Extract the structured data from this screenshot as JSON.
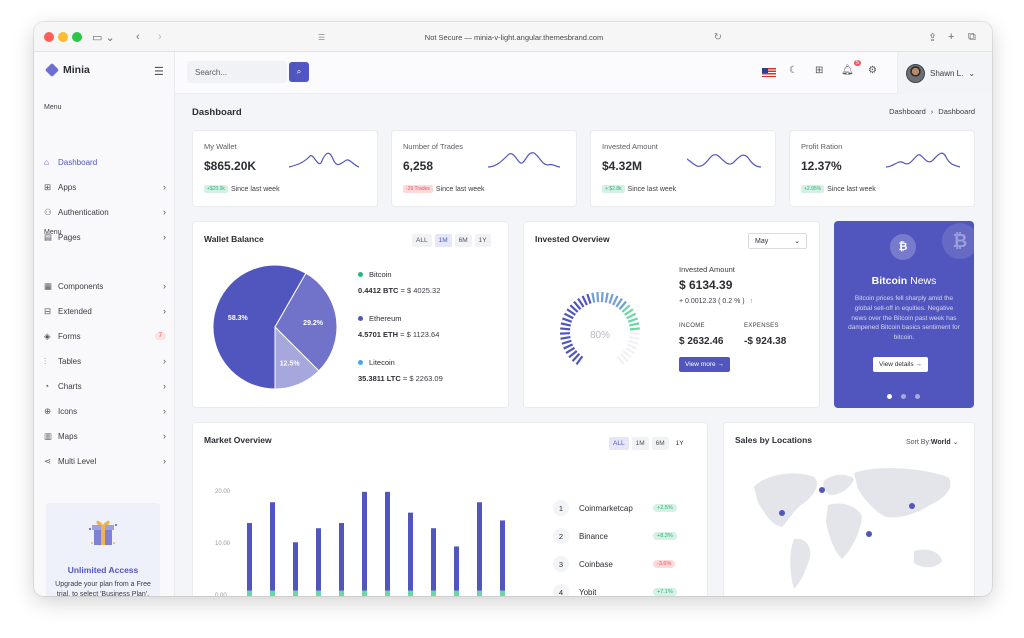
{
  "browser": {
    "url": "Not Secure — minia-v-light.angular.themesbrand.com"
  },
  "brand": {
    "name": "Minia"
  },
  "sidebar": {
    "menu_title_1": "Menu",
    "menu_title_2": "Menu",
    "items": [
      {
        "label": "Dashboard",
        "icon": "home-icon",
        "active": true
      },
      {
        "label": "Apps",
        "icon": "grid-icon"
      },
      {
        "label": "Authentication",
        "icon": "users-icon"
      },
      {
        "label": "Pages",
        "icon": "file-icon"
      },
      {
        "label": "Components",
        "icon": "briefcase-icon"
      },
      {
        "label": "Extended",
        "icon": "gift-icon"
      },
      {
        "label": "Forms",
        "icon": "box-icon",
        "badge": "7"
      },
      {
        "label": "Tables",
        "icon": "sliders-icon"
      },
      {
        "label": "Charts",
        "icon": "pie-chart-icon"
      },
      {
        "label": "Icons",
        "icon": "cpu-icon"
      },
      {
        "label": "Maps",
        "icon": "map-icon"
      },
      {
        "label": "Multi Level",
        "icon": "share-icon"
      }
    ],
    "promo": {
      "title": "Unlimited Access",
      "text": "Upgrade your plan from a Free trial, to select 'Business Plan'."
    }
  },
  "topbar": {
    "search_placeholder": "Search...",
    "notifications": "5",
    "user_name": "Shawn L."
  },
  "page": {
    "title": "Dashboard",
    "breadcrumb": [
      "Dashboard",
      "›",
      "Dashboard"
    ]
  },
  "stats": [
    {
      "label": "My Wallet",
      "value": "$865.20K",
      "badge": "+$20.9k",
      "badge_type": "up",
      "since": "Since last week"
    },
    {
      "label": "Number of Trades",
      "value": "6,258",
      "badge": "-29 Trades",
      "badge_type": "down",
      "since": "Since last week"
    },
    {
      "label": "Invested Amount",
      "value": "$4.32M",
      "badge": "+ $2.8k",
      "badge_type": "up",
      "since": "Since last week"
    },
    {
      "label": "Profit Ration",
      "value": "12.37%",
      "badge": "+2.95%",
      "badge_type": "up",
      "since": "Since last week"
    }
  ],
  "wallet": {
    "title": "Wallet Balance",
    "tabs": [
      "ALL",
      "1M",
      "6M",
      "1Y"
    ],
    "active_tab": "1M",
    "coins": [
      {
        "name": "Bitcoin",
        "amount": "0.4412 BTC",
        "value": "= $ 4025.32",
        "color": "#2ab57d"
      },
      {
        "name": "Ethereum",
        "amount": "4.5701 ETH",
        "value": "= $ 1123.64",
        "color": "#5156be"
      },
      {
        "name": "Litecoin",
        "amount": "35.3811 LTC",
        "value": "= $ 2263.09",
        "color": "#4ba6ef"
      }
    ]
  },
  "chart_data": [
    {
      "type": "pie",
      "categories": [
        "58.3%",
        "29.2%",
        "12.5%"
      ],
      "values": [
        58.3,
        29.2,
        12.5
      ],
      "colors": [
        "#5156be",
        "#7073c9",
        "#a5a7dd"
      ]
    },
    {
      "type": "bar",
      "yticks": [
        "20.00",
        "10.00",
        "0.00"
      ],
      "ylim": [
        0,
        25
      ],
      "series": [
        {
          "color": "#5156be",
          "values": [
            13,
            17,
            9.3,
            12,
            13,
            19,
            19,
            15,
            12,
            8.5,
            17,
            13.5
          ]
        },
        {
          "color": "#6ad7a4",
          "values": [
            4.3,
            4.3,
            4.3,
            4.3,
            4.3,
            4.3,
            4.3,
            4.3,
            4.3,
            4.3,
            4.3,
            4.3
          ]
        }
      ]
    }
  ],
  "invested": {
    "title": "Invested Overview",
    "month": "May",
    "gauge_value": "80%",
    "gauge_fraction": 0.8,
    "amount_label": "Invested Amount",
    "amount": "$ 6134.39",
    "change": "+ 0.0012.23 ( 0.2 % )",
    "income_label": "INCOME",
    "income": "$ 2632.46",
    "expenses_label": "EXPENSES",
    "expenses": "-$ 924.38",
    "button": "View more"
  },
  "bitcoin_promo": {
    "title_bold": "Bitcoin",
    "title_rest": "News",
    "text": "Bitcoin prices fell sharply amid the global sell-off in equities. Negative news over the Bitcoin past week has dampened Bitcoin basics sentiment for bitcoin.",
    "button": "View details"
  },
  "market": {
    "title": "Market Overview",
    "tabs": [
      "ALL",
      "1M",
      "6M",
      "1Y"
    ],
    "active_tab": "ALL",
    "rows": [
      {
        "rank": "1",
        "name": "Coinmarketcap",
        "change": "+2.5%",
        "type": "up"
      },
      {
        "rank": "2",
        "name": "Binance",
        "change": "+8.3%",
        "type": "up"
      },
      {
        "rank": "3",
        "name": "Coinbase",
        "change": "-3.6%",
        "type": "down"
      },
      {
        "rank": "4",
        "name": "Yobit",
        "change": "+7.1%",
        "type": "up"
      }
    ]
  },
  "locations": {
    "title": "Sales by Locations",
    "sort_label": "Sort By:",
    "sort_value": "World"
  }
}
